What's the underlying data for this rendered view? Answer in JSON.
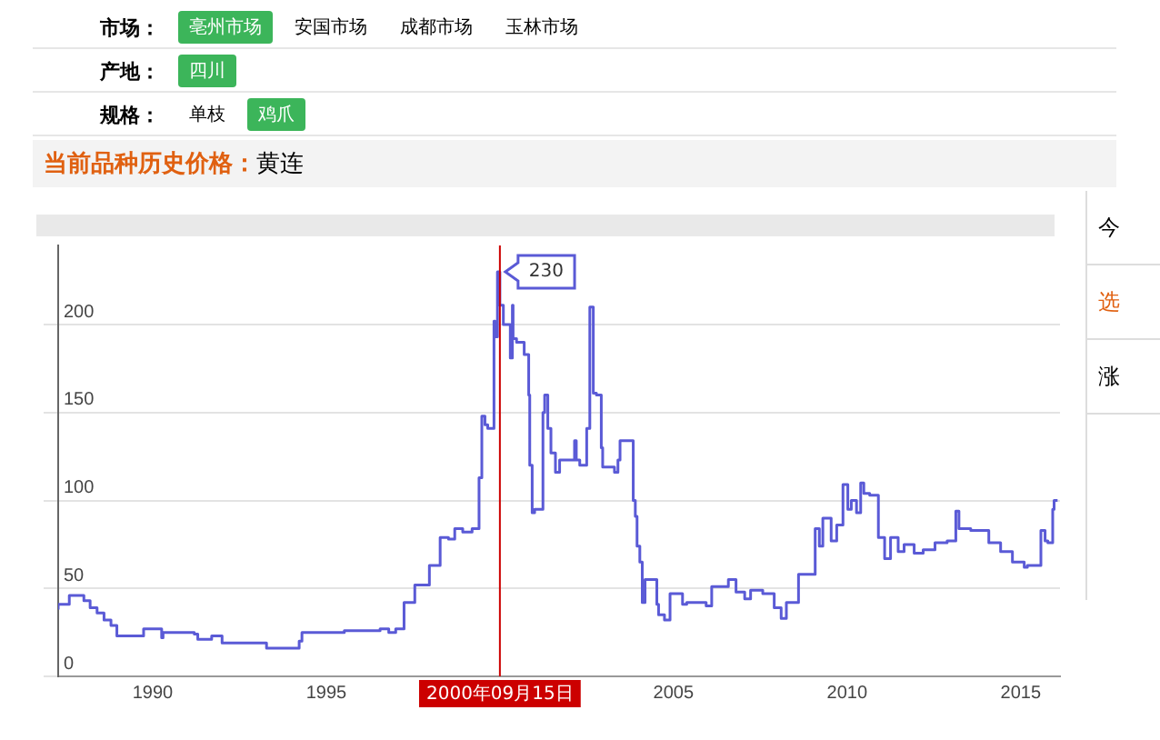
{
  "chart_data": {
    "type": "step",
    "title": "当前品种历史价格：黄连",
    "annotations": [
      "市场：",
      "亳州市场",
      "安国市场",
      "成都市场",
      "玉林市场",
      "产地：",
      "四川",
      "规格：",
      "单枝",
      "鸡爪",
      "今",
      "选",
      "涨",
      {
        "text": "230",
        "x": 2000.0,
        "y": 230
      }
    ],
    "series": [
      {
        "color": "#5a5ad6",
        "x": [
          1987.28,
          1987.6,
          1988.02,
          1988.2,
          1988.4,
          1988.6,
          1988.8,
          1988.97,
          1989.05,
          1989.74,
          1989.8,
          1990.26,
          1990.3,
          1991.2,
          1991.3,
          1991.7,
          1992.0,
          1992.16,
          1993.28,
          1993.32,
          1994.22,
          1994.3,
          1994.66,
          1995.52,
          1996.55,
          1996.8,
          1997.0,
          1997.24,
          1997.55,
          1997.97,
          1998.28,
          1998.52,
          1998.7,
          1998.93,
          1999.2,
          1999.4,
          1999.48,
          1999.57,
          1999.65,
          1999.83,
          1999.86,
          1999.93,
          2000.0,
          2000.1,
          2000.3,
          2000.36,
          2000.38,
          2000.48,
          2000.7,
          2000.83,
          2000.86,
          2000.93,
          2001.0,
          2001.24,
          2001.29,
          2001.38,
          2001.47,
          2001.6,
          2001.72,
          2001.9,
          2002.15,
          2002.2,
          2002.3,
          2002.5,
          2002.59,
          2002.69,
          2002.78,
          2002.92,
          2002.96,
          2003.3,
          2003.4,
          2003.46,
          2003.6,
          2003.84,
          2003.9,
          2003.95,
          2004.03,
          2004.1,
          2004.18,
          2004.28,
          2004.52,
          2004.57,
          2004.74,
          2004.9,
          2005.26,
          2005.38,
          2005.94,
          2006.1,
          2006.58,
          2006.8,
          2007.05,
          2007.22,
          2007.57,
          2007.9,
          2008.1,
          2008.25,
          2008.6,
          2009.08,
          2009.2,
          2009.3,
          2009.54,
          2009.7,
          2009.88,
          2010.02,
          2010.12,
          2010.27,
          2010.39,
          2010.48,
          2010.65,
          2010.9,
          2011.08,
          2011.25,
          2011.47,
          2011.64,
          2011.93,
          2012.19,
          2012.53,
          2012.88,
          2013.13,
          2013.22,
          2013.56,
          2014.08,
          2014.42,
          2014.76,
          2015.1,
          2015.19,
          2015.58,
          2015.7,
          2015.78,
          2015.92,
          2015.96,
          2016.06
        ],
        "values": [
          38,
          41,
          46,
          43,
          39,
          36,
          32,
          29,
          23,
          23,
          27,
          27,
          22,
          25,
          24,
          21,
          23,
          19,
          19,
          16,
          16,
          20,
          25,
          25,
          26,
          27,
          25,
          27,
          42,
          52,
          63,
          79,
          78,
          84,
          82,
          84,
          113,
          148,
          143,
          141,
          202,
          193,
          230,
          211,
          200,
          181,
          211,
          192,
          190,
          183,
          160,
          120,
          93,
          95,
          150,
          160,
          141,
          127,
          116,
          123,
          123,
          134,
          123,
          120,
          141,
          210,
          161,
          160,
          130,
          119,
          116,
          123,
          134,
          134,
          100,
          91,
          74,
          65,
          42,
          55,
          55,
          41,
          35,
          32,
          47,
          41,
          42,
          40,
          51,
          55,
          48,
          44,
          49,
          47,
          39,
          33,
          42,
          58,
          84,
          74,
          90,
          77,
          86,
          109,
          95,
          100,
          93,
          110,
          104,
          103,
          79,
          67,
          79,
          71,
          75,
          70,
          72,
          76,
          77,
          94,
          84,
          83,
          76,
          71,
          65,
          62,
          63,
          83,
          77,
          76,
          95,
          100
        ]
      }
    ],
    "xlim": [
      1987.28,
      2016.13
    ],
    "xticks": [
      1990,
      1995,
      2005,
      2010,
      2015
    ],
    "ylim": [
      0,
      245
    ],
    "yticks": [
      0,
      50,
      100,
      150,
      200
    ],
    "ref_lines": [
      {
        "axis": "x",
        "value": 2000.0,
        "label": "2000年09月15日",
        "color": "#cc0000"
      }
    ],
    "grid": "y",
    "legend": false,
    "marker": "none",
    "line_style": "solid"
  }
}
